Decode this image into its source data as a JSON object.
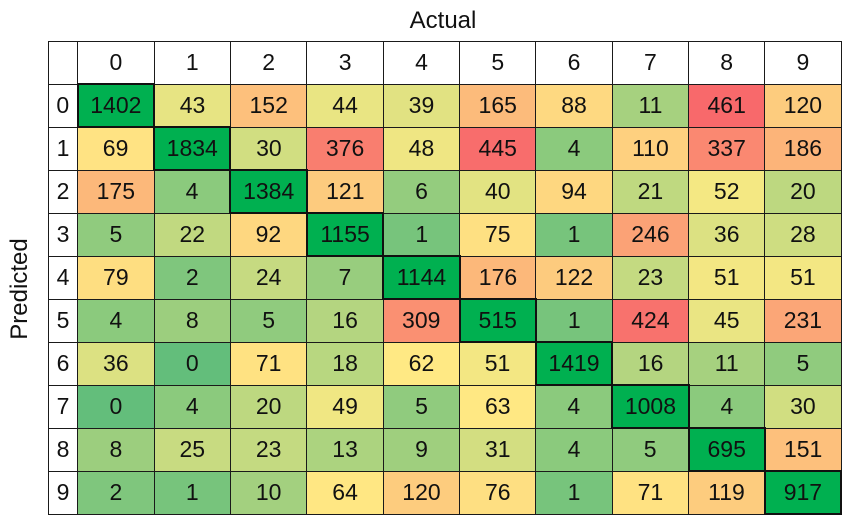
{
  "chart_data": {
    "type": "heatmap",
    "xlabel": "Actual",
    "ylabel": "Predicted",
    "x_categories": [
      "0",
      "1",
      "2",
      "3",
      "4",
      "5",
      "6",
      "7",
      "8",
      "9"
    ],
    "y_categories": [
      "0",
      "1",
      "2",
      "3",
      "4",
      "5",
      "6",
      "7",
      "8",
      "9"
    ],
    "colorscale": [
      "#63be7b",
      "#ffeb84",
      "#f8696b"
    ],
    "diagonal_color": "#00b050",
    "values": [
      [
        1402,
        43,
        152,
        44,
        39,
        165,
        88,
        11,
        461,
        120
      ],
      [
        69,
        1834,
        30,
        376,
        48,
        445,
        4,
        110,
        337,
        186
      ],
      [
        175,
        4,
        1384,
        121,
        6,
        40,
        94,
        21,
        52,
        20
      ],
      [
        5,
        22,
        92,
        1155,
        1,
        75,
        1,
        246,
        36,
        28
      ],
      [
        79,
        2,
        24,
        7,
        1144,
        176,
        122,
        23,
        51,
        51
      ],
      [
        4,
        8,
        5,
        16,
        309,
        515,
        1,
        424,
        45,
        231
      ],
      [
        36,
        0,
        71,
        18,
        62,
        51,
        1419,
        16,
        11,
        5
      ],
      [
        0,
        4,
        20,
        49,
        5,
        63,
        4,
        1008,
        4,
        30
      ],
      [
        8,
        25,
        23,
        13,
        9,
        31,
        4,
        5,
        695,
        151
      ],
      [
        2,
        1,
        10,
        64,
        120,
        76,
        1,
        71,
        119,
        917
      ]
    ]
  }
}
